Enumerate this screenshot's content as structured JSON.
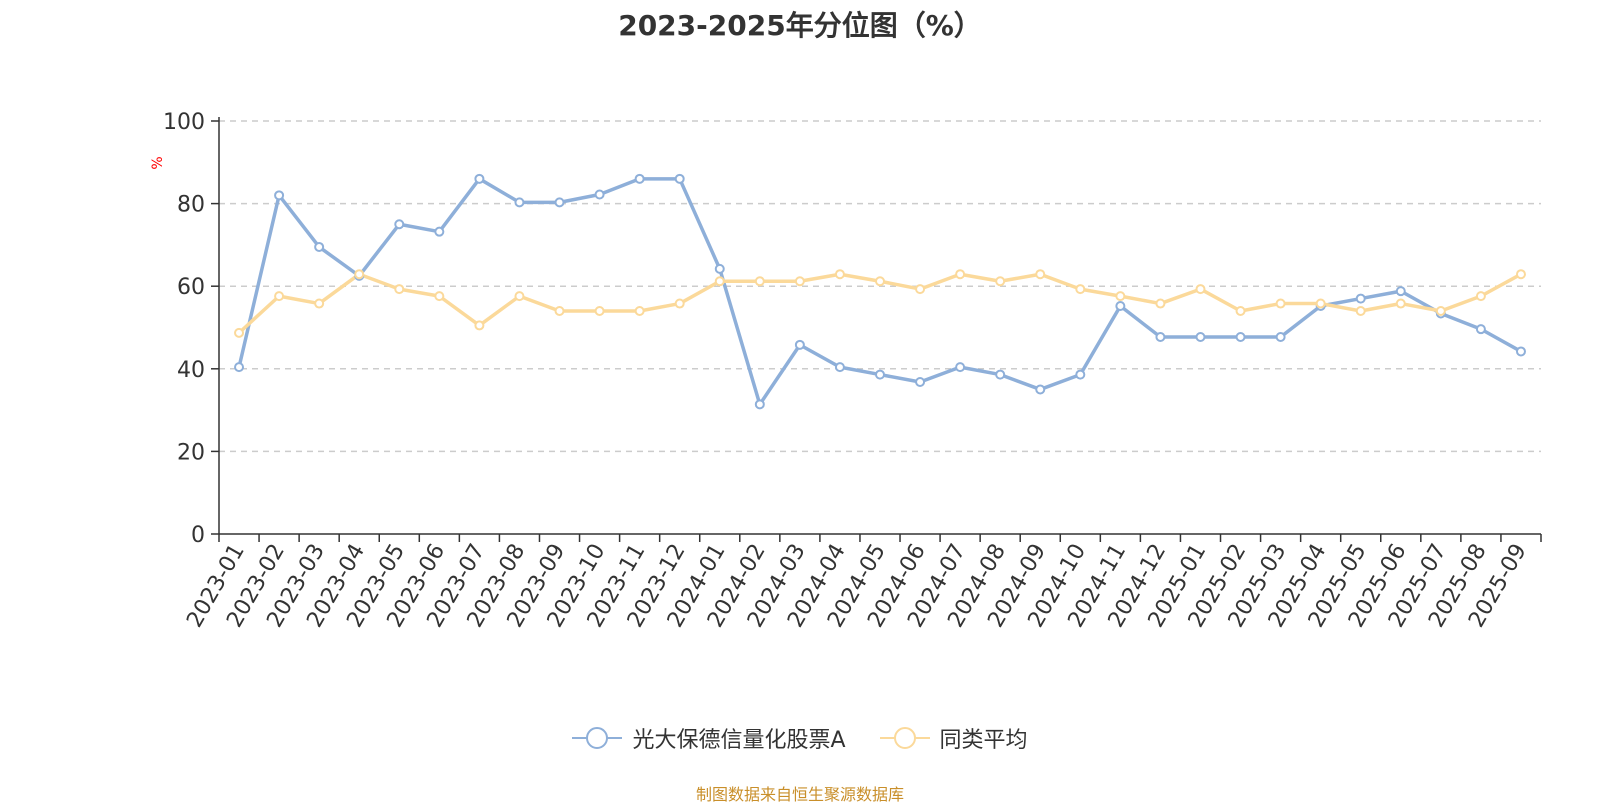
{
  "chart_data": {
    "type": "line",
    "title": "2023-2025年分位图（%）",
    "ylabel": "%",
    "ylim": [
      0,
      100
    ],
    "yticks": [
      0,
      20,
      40,
      60,
      80,
      100
    ],
    "grid": true,
    "legend_position": "bottom",
    "categories": [
      "2023-01",
      "2023-02",
      "2023-03",
      "2023-04",
      "2023-05",
      "2023-06",
      "2023-07",
      "2023-08",
      "2023-09",
      "2023-10",
      "2023-11",
      "2023-12",
      "2024-01",
      "2024-02",
      "2024-03",
      "2024-04",
      "2024-05",
      "2024-06",
      "2024-07",
      "2024-08",
      "2024-09",
      "2024-10",
      "2024-11",
      "2024-12",
      "2025-01",
      "2025-02",
      "2025-03",
      "2025-04",
      "2025-05",
      "2025-06",
      "2025-07",
      "2025-08",
      "2025-09"
    ],
    "series": [
      {
        "name": "光大保德信量化股票A",
        "color": "#8eafd9",
        "values": [
          40.4,
          82,
          69.5,
          62.5,
          75,
          73.2,
          86,
          80.3,
          80.3,
          82.2,
          86,
          86,
          64.2,
          31.4,
          45.8,
          40.4,
          38.6,
          36.8,
          40.4,
          38.6,
          35,
          38.6,
          55.2,
          47.7,
          47.7,
          47.7,
          47.7,
          55.2,
          57,
          58.8,
          53.4,
          49.6,
          44.2
        ]
      },
      {
        "name": "同类平均",
        "color": "#fbd99a",
        "values": [
          48.7,
          57.6,
          55.8,
          62.9,
          59.3,
          57.6,
          50.5,
          57.6,
          54,
          54,
          54,
          55.8,
          61.2,
          61.2,
          61.2,
          62.9,
          61.2,
          59.3,
          62.9,
          61.2,
          62.9,
          59.3,
          57.6,
          55.8,
          59.3,
          54,
          55.8,
          55.8,
          54,
          55.8,
          54,
          57.6,
          62.9
        ]
      }
    ]
  },
  "footer": {
    "source": "制图数据来自恒生聚源数据库"
  }
}
